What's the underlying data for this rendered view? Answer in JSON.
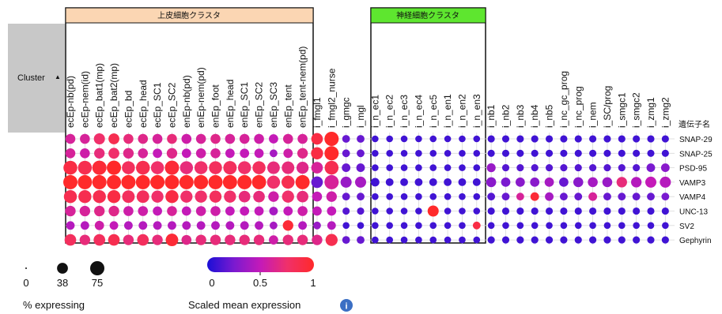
{
  "chart_data": {
    "type": "dotplot",
    "cluster_header": "Cluster",
    "sort_indicator": "▲",
    "gene_column_header": "遺伝子名",
    "groups": [
      {
        "label": "上皮細胞クラスタ",
        "color": "#fbd6b3",
        "from": 0,
        "to": 17
      },
      {
        "label": "神経細胞クラスタ",
        "color": "#5ee62f",
        "from": 20,
        "to": 28
      }
    ],
    "clusters": [
      "ecEp-nb(pd)",
      "ecEp-nem(id)",
      "ecEp_bat1(mp)",
      "ecEp_bat2(mp)",
      "ecEp_bd",
      "ecEp_head",
      "ecEp_SC1",
      "ecEp_SC2",
      "enEp-nb(pd)",
      "enEp-nem(pd)",
      "enEp_foot",
      "enEp_head",
      "enEp_SC1",
      "enEp_SC2",
      "enEp_SC3",
      "enEp_tent",
      "enEp_tent-nem(pd)",
      "i_fmgl1",
      "i_fmgl2_nurse",
      "i_gmgc",
      "i_mgl",
      "i_n_ec1",
      "i_n_ec2",
      "i_n_ec3",
      "i_n_ec4",
      "i_n_ec5",
      "i_n_en1",
      "i_n_en2",
      "i_n_en3",
      "i_nb1",
      "i_nb2",
      "i_nb3",
      "i_nb4",
      "i_nb5",
      "i_nc_gc_prog",
      "i_nc_prog",
      "i_nem",
      "i_SC/prog",
      "i_smgc1",
      "i_smgc2",
      "i_zmg1",
      "i_zmg2"
    ],
    "genes": [
      "SNAP-29",
      "SNAP-25",
      "PSD-95",
      "VAMP3",
      "VAMP4",
      "UNC-13",
      "SV2",
      "Gephyrin"
    ],
    "size_percent": [
      [
        30,
        30,
        40,
        38,
        30,
        30,
        30,
        30,
        30,
        30,
        30,
        30,
        30,
        30,
        25,
        30,
        30,
        45,
        75,
        15,
        15,
        10,
        10,
        10,
        10,
        10,
        10,
        10,
        10,
        12,
        12,
        12,
        12,
        12,
        12,
        12,
        12,
        12,
        12,
        12,
        12,
        12
      ],
      [
        30,
        30,
        35,
        38,
        35,
        30,
        25,
        35,
        25,
        30,
        30,
        25,
        25,
        25,
        15,
        25,
        35,
        50,
        75,
        15,
        15,
        10,
        10,
        10,
        10,
        10,
        10,
        10,
        10,
        12,
        12,
        12,
        12,
        12,
        12,
        12,
        12,
        12,
        12,
        12,
        12,
        12
      ],
      [
        70,
        70,
        75,
        75,
        60,
        70,
        60,
        75,
        60,
        60,
        60,
        65,
        60,
        60,
        55,
        55,
        50,
        45,
        70,
        20,
        20,
        10,
        10,
        10,
        10,
        10,
        10,
        10,
        10,
        22,
        12,
        12,
        12,
        12,
        12,
        12,
        12,
        12,
        12,
        12,
        20,
        20
      ],
      [
        75,
        75,
        75,
        75,
        75,
        75,
        75,
        75,
        75,
        75,
        75,
        75,
        75,
        75,
        60,
        60,
        75,
        45,
        75,
        40,
        40,
        20,
        15,
        15,
        15,
        15,
        15,
        15,
        15,
        30,
        25,
        25,
        25,
        25,
        25,
        30,
        30,
        30,
        35,
        35,
        40,
        40
      ],
      [
        60,
        60,
        60,
        60,
        55,
        55,
        50,
        60,
        50,
        50,
        50,
        50,
        45,
        45,
        35,
        50,
        45,
        30,
        35,
        15,
        15,
        10,
        10,
        10,
        10,
        10,
        10,
        10,
        10,
        15,
        15,
        15,
        20,
        20,
        15,
        15,
        20,
        15,
        15,
        15,
        15,
        15
      ],
      [
        35,
        35,
        35,
        35,
        30,
        30,
        25,
        30,
        25,
        30,
        30,
        25,
        25,
        25,
        20,
        25,
        30,
        25,
        25,
        12,
        12,
        10,
        10,
        10,
        10,
        40,
        10,
        10,
        10,
        12,
        12,
        12,
        12,
        12,
        12,
        12,
        12,
        12,
        12,
        12,
        12,
        12
      ],
      [
        20,
        20,
        25,
        20,
        20,
        20,
        20,
        20,
        20,
        20,
        20,
        20,
        20,
        20,
        15,
        35,
        20,
        15,
        20,
        10,
        10,
        10,
        10,
        10,
        10,
        10,
        10,
        10,
        15,
        10,
        10,
        10,
        10,
        10,
        10,
        10,
        10,
        10,
        10,
        10,
        10,
        10
      ],
      [
        45,
        35,
        45,
        45,
        35,
        45,
        35,
        55,
        30,
        35,
        35,
        35,
        35,
        35,
        25,
        35,
        35,
        35,
        50,
        15,
        15,
        10,
        10,
        10,
        10,
        10,
        10,
        10,
        10,
        12,
        12,
        12,
        12,
        12,
        12,
        12,
        12,
        12,
        12,
        12,
        12,
        12
      ]
    ],
    "color_value": [
      [
        0.6,
        0.6,
        0.75,
        0.85,
        0.7,
        0.65,
        0.6,
        0.7,
        0.55,
        0.6,
        0.65,
        0.6,
        0.6,
        0.55,
        0.5,
        0.6,
        0.6,
        0.9,
        1.0,
        0.2,
        0.2,
        0.1,
        0.1,
        0.1,
        0.1,
        0.1,
        0.1,
        0.1,
        0.1,
        0.1,
        0.1,
        0.1,
        0.1,
        0.1,
        0.1,
        0.1,
        0.1,
        0.1,
        0.1,
        0.1,
        0.1,
        0.1
      ],
      [
        0.6,
        0.55,
        0.7,
        0.75,
        0.65,
        0.6,
        0.5,
        0.65,
        0.5,
        0.55,
        0.6,
        0.5,
        0.5,
        0.5,
        0.4,
        0.55,
        0.65,
        0.9,
        1.0,
        0.2,
        0.2,
        0.1,
        0.1,
        0.1,
        0.1,
        0.1,
        0.1,
        0.1,
        0.1,
        0.1,
        0.1,
        0.1,
        0.1,
        0.1,
        0.1,
        0.1,
        0.1,
        0.1,
        0.1,
        0.1,
        0.1,
        0.1
      ],
      [
        0.9,
        0.85,
        0.95,
        1.0,
        0.8,
        0.85,
        0.75,
        0.95,
        0.7,
        0.75,
        0.8,
        0.8,
        0.75,
        0.8,
        0.7,
        0.7,
        0.65,
        0.6,
        0.85,
        0.2,
        0.2,
        0.1,
        0.1,
        0.1,
        0.1,
        0.1,
        0.1,
        0.1,
        0.1,
        0.35,
        0.15,
        0.15,
        0.15,
        0.15,
        0.15,
        0.15,
        0.15,
        0.15,
        0.15,
        0.15,
        0.25,
        0.3
      ],
      [
        1.0,
        1.0,
        1.0,
        1.0,
        1.0,
        1.0,
        1.0,
        1.0,
        1.0,
        1.0,
        1.0,
        1.0,
        1.0,
        1.0,
        0.75,
        0.85,
        1.0,
        0.2,
        0.6,
        0.35,
        0.4,
        0.1,
        0.1,
        0.1,
        0.1,
        0.1,
        0.1,
        0.1,
        0.1,
        0.3,
        0.25,
        0.3,
        0.3,
        0.4,
        0.2,
        0.3,
        0.4,
        0.35,
        0.7,
        0.45,
        0.5,
        0.45
      ],
      [
        0.85,
        0.85,
        0.85,
        0.9,
        0.8,
        0.8,
        0.75,
        0.9,
        0.75,
        0.75,
        0.8,
        0.75,
        0.7,
        0.7,
        0.55,
        0.75,
        0.7,
        0.5,
        0.55,
        0.2,
        0.2,
        0.1,
        0.1,
        0.1,
        0.1,
        0.1,
        0.1,
        0.1,
        0.1,
        0.15,
        0.2,
        0.6,
        0.95,
        0.4,
        0.2,
        0.2,
        0.6,
        0.2,
        0.2,
        0.2,
        0.2,
        0.25
      ],
      [
        0.6,
        0.6,
        0.65,
        0.65,
        0.55,
        0.55,
        0.5,
        0.6,
        0.5,
        0.55,
        0.55,
        0.5,
        0.5,
        0.5,
        0.4,
        0.5,
        0.55,
        0.5,
        0.5,
        0.15,
        0.15,
        0.1,
        0.1,
        0.1,
        0.1,
        1.0,
        0.1,
        0.1,
        0.1,
        0.1,
        0.1,
        0.1,
        0.1,
        0.1,
        0.1,
        0.1,
        0.1,
        0.1,
        0.1,
        0.1,
        0.1,
        0.1
      ],
      [
        0.45,
        0.45,
        0.55,
        0.5,
        0.45,
        0.45,
        0.45,
        0.45,
        0.45,
        0.45,
        0.45,
        0.45,
        0.45,
        0.45,
        0.4,
        0.95,
        0.45,
        0.35,
        0.45,
        0.1,
        0.1,
        0.1,
        0.1,
        0.1,
        0.1,
        0.1,
        0.1,
        0.1,
        0.9,
        0.1,
        0.1,
        0.1,
        0.1,
        0.1,
        0.1,
        0.1,
        0.1,
        0.1,
        0.1,
        0.1,
        0.1,
        0.1
      ],
      [
        0.8,
        0.7,
        0.8,
        0.85,
        0.7,
        0.8,
        0.7,
        0.95,
        0.65,
        0.7,
        0.7,
        0.7,
        0.7,
        0.7,
        0.55,
        0.7,
        0.7,
        0.65,
        0.85,
        0.2,
        0.2,
        0.1,
        0.1,
        0.1,
        0.1,
        0.1,
        0.1,
        0.1,
        0.1,
        0.1,
        0.1,
        0.1,
        0.1,
        0.1,
        0.1,
        0.1,
        0.1,
        0.1,
        0.1,
        0.1,
        0.1,
        0.1
      ]
    ],
    "size_legend": {
      "title": "% expressing",
      "values": [
        0,
        38,
        75
      ],
      "labels": [
        "0",
        "38",
        "75"
      ]
    },
    "color_legend": {
      "title": "Scaled mean expression",
      "labels": [
        "0",
        "0.5",
        "1"
      ],
      "colors": [
        "#1a0fd6",
        "#7a1ad0",
        "#c41ab8",
        "#f0306a",
        "#ff2a2a"
      ]
    }
  }
}
